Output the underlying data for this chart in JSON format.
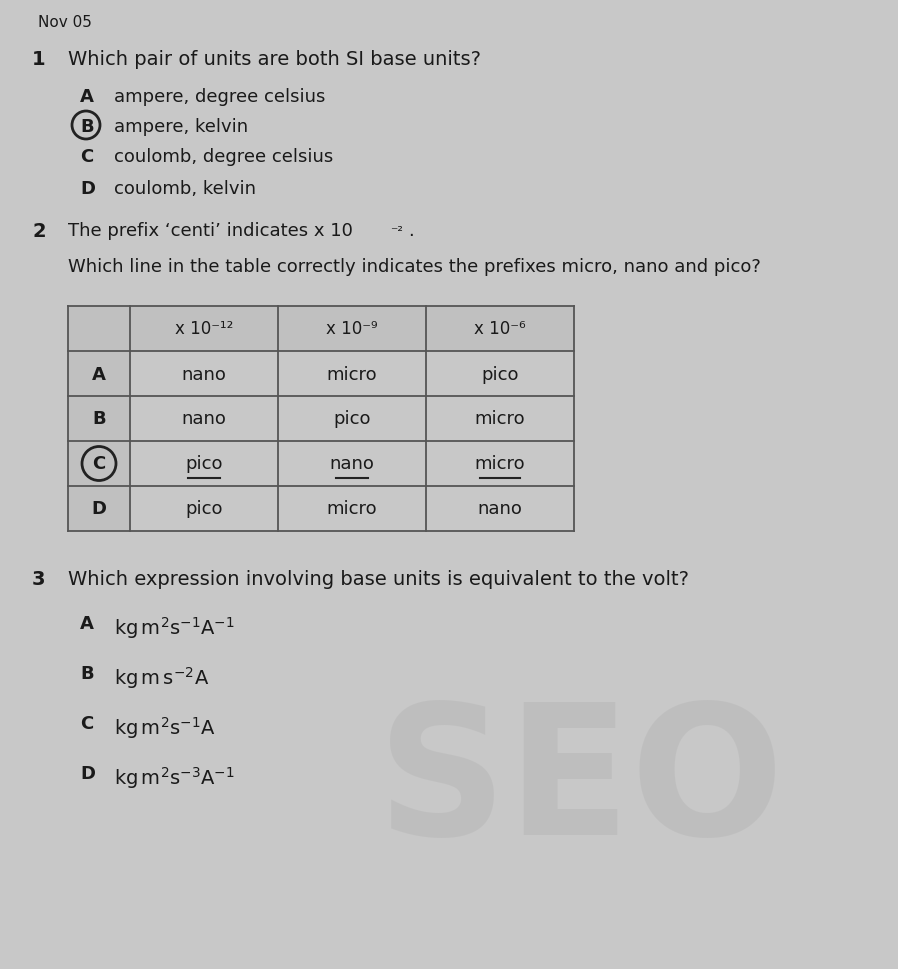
{
  "background_color": "#c8c8c8",
  "paper_color": "#e2e2e2",
  "header": "Nov 05",
  "q1_num": "1",
  "q1_text": "Which pair of units are both SI base units?",
  "q1_options": [
    {
      "label": "A",
      "text": "ampere, degree celsius",
      "circled": false
    },
    {
      "label": "B",
      "text": "ampere, kelvin",
      "circled": true
    },
    {
      "label": "C",
      "text": "coulomb, degree celsius",
      "circled": false
    },
    {
      "label": "D",
      "text": "coulomb, kelvin",
      "circled": false
    }
  ],
  "q2_num": "2",
  "q2_text1": "The prefix ‘centi’ indicates x 10",
  "q2_sup1": "⁻²",
  "q2_text2": "Which line in the table correctly indicates the prefixes micro, nano and pico?",
  "table_headers": [
    "",
    "x 10⁻¹²",
    "x 10⁻⁹",
    "x 10⁻⁶"
  ],
  "table_rows": [
    {
      "label": "A",
      "circled": false,
      "c1": "nano",
      "c2": "micro",
      "c3": "pico"
    },
    {
      "label": "B",
      "circled": false,
      "c1": "nano",
      "c2": "pico",
      "c3": "micro"
    },
    {
      "label": "C",
      "circled": true,
      "c1": "pico",
      "c2": "nano",
      "c3": "micro"
    },
    {
      "label": "D",
      "circled": false,
      "c1": "pico",
      "c2": "micro",
      "c3": "nano"
    }
  ],
  "q3_num": "3",
  "q3_text": "Which expression involving base units is equivalent to the volt?",
  "q3_options": [
    {
      "label": "A",
      "formula": "$\\mathregular{kg\\,m^2s^{-1}A^{-1}}$"
    },
    {
      "label": "B",
      "formula": "$\\mathregular{kg\\,m\\,s^{-2}A}$"
    },
    {
      "label": "C",
      "formula": "$\\mathregular{kg\\,m^2s^{-1}A}$"
    },
    {
      "label": "D",
      "formula": "$\\mathregular{kg\\,m^2s^{-3}A^{-1}}$"
    }
  ],
  "watermark": "SEO",
  "fc": "#1a1a1a",
  "circle_color": "#222222",
  "lc": "#555555",
  "header_fill": "#c0c0c0",
  "col0_fill": "#c0c0c0",
  "underline_color": "#222222"
}
